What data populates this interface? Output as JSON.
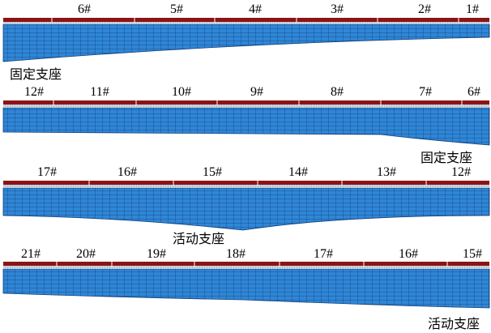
{
  "colors": {
    "mesh_fill": "#2f86d6",
    "mesh_line": "#123f7a",
    "deck_top": "#8b1414",
    "deck_rail": "#b8c6d8",
    "divider": "#ffffff"
  },
  "rows": [
    {
      "segments": [
        "6#",
        "5#",
        "4#",
        "3#",
        "2#",
        "1#"
      ],
      "support_label": "固定支座"
    },
    {
      "segments": [
        "12#",
        "11#",
        "10#",
        "9#",
        "8#",
        "7#",
        "6#"
      ],
      "support_label": "固定支座"
    },
    {
      "segments": [
        "17#",
        "16#",
        "15#",
        "14#",
        "13#",
        "12#"
      ],
      "support_label": "活动支座"
    },
    {
      "segments": [
        "21#",
        "20#",
        "19#",
        "18#",
        "17#",
        "16#",
        "15#"
      ],
      "support_label": "活动支座"
    }
  ]
}
